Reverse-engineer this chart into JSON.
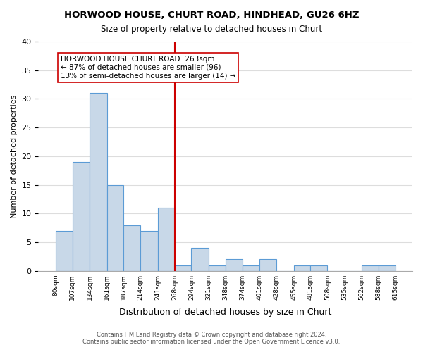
{
  "title": "HORWOOD HOUSE, CHURT ROAD, HINDHEAD, GU26 6HZ",
  "subtitle": "Size of property relative to detached houses in Churt",
  "xlabel": "Distribution of detached houses by size in Churt",
  "ylabel": "Number of detached properties",
  "bins": [
    80,
    107,
    134,
    161,
    187,
    214,
    241,
    268,
    294,
    321,
    348,
    374,
    401,
    428,
    455,
    481,
    508,
    535,
    562,
    588,
    615
  ],
  "counts": [
    7,
    19,
    31,
    15,
    8,
    7,
    11,
    1,
    4,
    1,
    2,
    1,
    2,
    0,
    1,
    1,
    0,
    0,
    1,
    1
  ],
  "bar_color": "#c8d8e8",
  "bar_edge_color": "#5b9bd5",
  "subject_value": 263,
  "subject_line_color": "#cc0000",
  "annotation_text": "HORWOOD HOUSE CHURT ROAD: 263sqm\n← 87% of detached houses are smaller (96)\n13% of semi-detached houses are larger (14) →",
  "annotation_box_color": "#ffffff",
  "annotation_box_edge_color": "#cc0000",
  "ylim": [
    0,
    40
  ],
  "yticks": [
    0,
    5,
    10,
    15,
    20,
    25,
    30,
    35,
    40
  ],
  "grid_color": "#dddddd",
  "background_color": "#ffffff",
  "footer_line1": "Contains HM Land Registry data © Crown copyright and database right 2024.",
  "footer_line2": "Contains public sector information licensed under the Open Government Licence v3.0.",
  "tick_labels": [
    "80sqm",
    "107sqm",
    "134sqm",
    "161sqm",
    "187sqm",
    "214sqm",
    "241sqm",
    "268sqm",
    "294sqm",
    "321sqm",
    "348sqm",
    "374sqm",
    "401sqm",
    "428sqm",
    "455sqm",
    "481sqm",
    "508sqm",
    "535sqm",
    "562sqm",
    "588sqm",
    "615sqm"
  ]
}
